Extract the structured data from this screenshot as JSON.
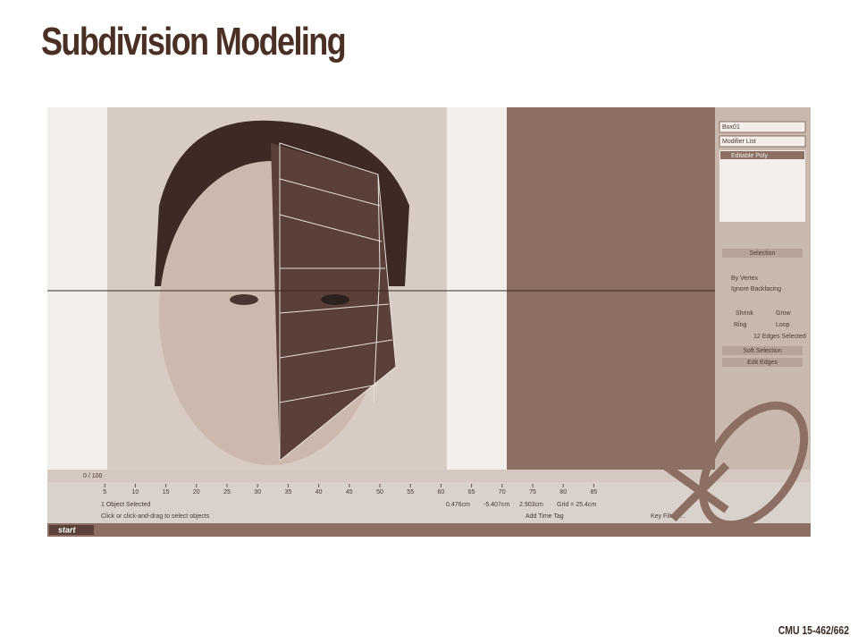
{
  "slide": {
    "title": "Subdivision Modeling",
    "footer": "CMU 15-462/662"
  },
  "screenshot": {
    "frame": "0 / 100",
    "status_selected": "1 Object Selected",
    "prompt": "Click or click-and-drag to select objects",
    "object_name": "Box01",
    "modifier_list": "Modifier List",
    "stack_item": "Editable Poly",
    "rollout_selection": "Selection",
    "by_vertex": "By Vertex",
    "ignore_backfacing": "Ignore Backfacing",
    "shrink": "Shrink",
    "grow": "Grow",
    "ring": "Ring",
    "loop": "Loop",
    "edges_selected": "12 Edges Selected",
    "soft_selection": "Soft Selection",
    "edit_edges": "Edit Edges",
    "grid": "Grid = 25.4cm",
    "add_time_tag": "Add Time Tag",
    "key_filters": "Key Filters...",
    "start": "start",
    "coord_x": "0.476cm",
    "coord_y": "-5.407cm",
    "coord_z": "2.903cm",
    "timeline_ticks": [
      5,
      10,
      15,
      20,
      25,
      30,
      35,
      40,
      45,
      50,
      55,
      60,
      65,
      70,
      75,
      80,
      85
    ]
  }
}
